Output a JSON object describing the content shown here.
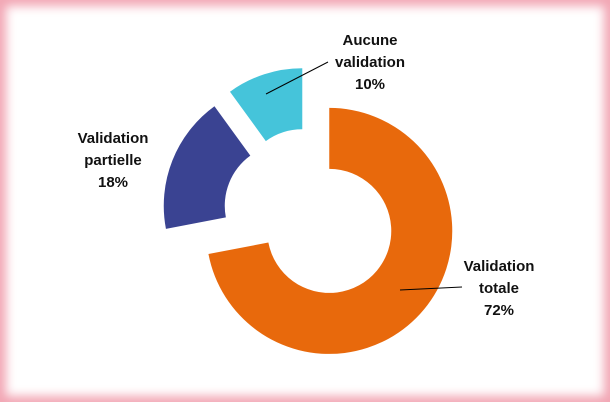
{
  "chart_data": {
    "type": "donut",
    "categories": [
      "Aucune validation",
      "Validation partielle",
      "Validation totale"
    ],
    "values": [
      10,
      18,
      72
    ],
    "value_labels": [
      "10%",
      "18%",
      "72%"
    ],
    "colors": [
      "#45c4da",
      "#3a4392",
      "#e8690c"
    ]
  }
}
